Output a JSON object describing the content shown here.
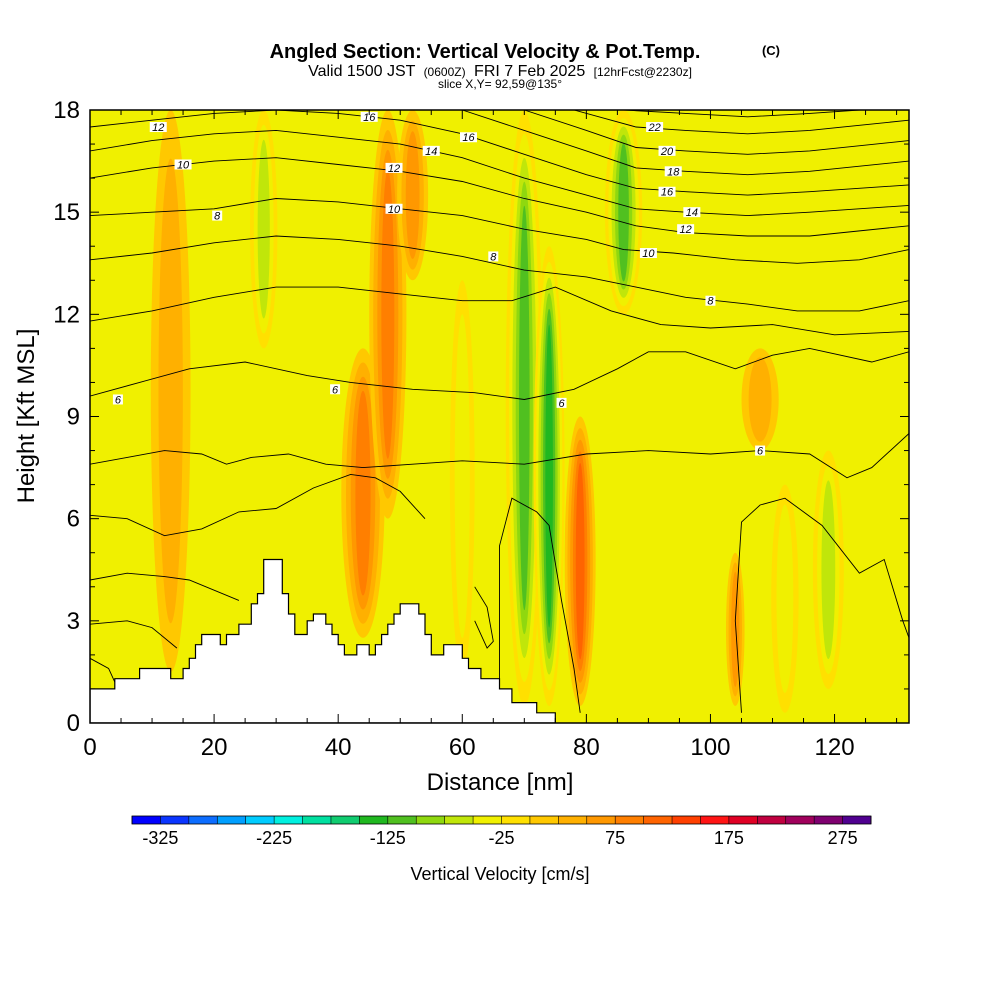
{
  "header": {
    "title": "Angled Section: Vertical Velocity & Pot.Temp.",
    "title_unit": "(C)",
    "valid_prefix": "Valid 1500 JST",
    "valid_utc": "(0600Z)",
    "valid_date": "FRI 7 Feb 2025",
    "forecast": "[12hrFcst@2230z]",
    "slice": "slice X,Y= 92,59@135°"
  },
  "chart_data": {
    "type": "heatmap",
    "xlabel": "Distance [nm]",
    "ylabel": "Height [Kft MSL]",
    "xlim": [
      0,
      132
    ],
    "ylim": [
      0,
      18
    ],
    "x_ticks": [
      {
        "v": 0,
        "label": "0"
      },
      {
        "v": 20,
        "label": "20"
      },
      {
        "v": 40,
        "label": "40"
      },
      {
        "v": 60,
        "label": "60"
      },
      {
        "v": 80,
        "label": "80"
      },
      {
        "v": 100,
        "label": "100"
      },
      {
        "v": 120,
        "label": "120"
      }
    ],
    "y_ticks": [
      {
        "v": 0,
        "label": "0"
      },
      {
        "v": 3,
        "label": "3"
      },
      {
        "v": 6,
        "label": "6"
      },
      {
        "v": 9,
        "label": "9"
      },
      {
        "v": 12,
        "label": "12"
      },
      {
        "v": 15,
        "label": "15"
      },
      {
        "v": 18,
        "label": "18"
      }
    ],
    "grid": false,
    "colorbar": {
      "label": "Vertical Velocity [cm/s]",
      "min": -350,
      "step": 25,
      "colors": [
        "#0000ff",
        "#0a35ff",
        "#0d6dff",
        "#009fff",
        "#00ccff",
        "#00f0e0",
        "#00e0a0",
        "#10cc70",
        "#20b820",
        "#50c020",
        "#8fd80f",
        "#c0e60a",
        "#f0f000",
        "#ffe000",
        "#ffc800",
        "#ffb000",
        "#ff9800",
        "#ff7f00",
        "#ff6400",
        "#ff4000",
        "#ff1414",
        "#e00024",
        "#c00040",
        "#a0005c",
        "#7f0070",
        "#500090"
      ],
      "tick_labels": [
        {
          "v": -325,
          "label": "-325"
        },
        {
          "v": -225,
          "label": "-225"
        },
        {
          "v": -125,
          "label": "-125"
        },
        {
          "v": -25,
          "label": "-25"
        },
        {
          "v": 75,
          "label": "75"
        },
        {
          "v": 175,
          "label": "175"
        },
        {
          "v": 275,
          "label": "275"
        }
      ]
    },
    "terrain": [
      [
        0,
        1
      ],
      [
        4,
        1
      ],
      [
        4,
        1.3
      ],
      [
        8,
        1.3
      ],
      [
        8,
        1.6
      ],
      [
        13,
        1.6
      ],
      [
        13,
        1.3
      ],
      [
        15,
        1.3
      ],
      [
        15,
        1.6
      ],
      [
        16,
        1.6
      ],
      [
        16,
        1.9
      ],
      [
        17,
        1.9
      ],
      [
        17,
        2.3
      ],
      [
        18,
        2.3
      ],
      [
        18,
        2.6
      ],
      [
        21,
        2.6
      ],
      [
        21,
        2.3
      ],
      [
        22,
        2.3
      ],
      [
        22,
        2.6
      ],
      [
        24,
        2.6
      ],
      [
        24,
        2.9
      ],
      [
        26,
        2.9
      ],
      [
        26,
        3.5
      ],
      [
        27,
        3.5
      ],
      [
        27,
        3.8
      ],
      [
        28,
        3.8
      ],
      [
        28,
        4.8
      ],
      [
        31,
        4.8
      ],
      [
        31,
        3.8
      ],
      [
        32,
        3.8
      ],
      [
        32,
        3.2
      ],
      [
        33,
        3.2
      ],
      [
        33,
        2.6
      ],
      [
        35,
        2.6
      ],
      [
        35,
        3.0
      ],
      [
        36,
        3.0
      ],
      [
        36,
        3.2
      ],
      [
        38,
        3.2
      ],
      [
        38,
        2.9
      ],
      [
        39,
        2.9
      ],
      [
        39,
        2.6
      ],
      [
        40,
        2.6
      ],
      [
        40,
        2.3
      ],
      [
        41,
        2.3
      ],
      [
        41,
        2.0
      ],
      [
        43,
        2.0
      ],
      [
        43,
        2.3
      ],
      [
        45,
        2.3
      ],
      [
        45,
        2.0
      ],
      [
        46,
        2.0
      ],
      [
        46,
        2.3
      ],
      [
        47,
        2.3
      ],
      [
        47,
        2.6
      ],
      [
        48,
        2.6
      ],
      [
        48,
        2.9
      ],
      [
        49,
        2.9
      ],
      [
        49,
        3.2
      ],
      [
        50,
        3.2
      ],
      [
        50,
        3.5
      ],
      [
        53,
        3.5
      ],
      [
        53,
        3.2
      ],
      [
        54,
        3.2
      ],
      [
        54,
        2.6
      ],
      [
        55,
        2.6
      ],
      [
        55,
        2.0
      ],
      [
        57,
        2.0
      ],
      [
        57,
        2.3
      ],
      [
        60,
        2.3
      ],
      [
        60,
        1.9
      ],
      [
        61,
        1.9
      ],
      [
        61,
        1.6
      ],
      [
        63,
        1.6
      ],
      [
        63,
        1.3
      ],
      [
        66,
        1.3
      ],
      [
        66,
        1.0
      ],
      [
        68,
        1.0
      ],
      [
        68,
        0.6
      ],
      [
        72,
        0.6
      ],
      [
        72,
        0.3
      ],
      [
        75,
        0.3
      ],
      [
        75,
        0
      ],
      [
        0,
        0
      ]
    ],
    "updrafts": [
      {
        "cx": 13,
        "y0": 1.5,
        "y1": 18,
        "w": 3.2,
        "v": 45
      },
      {
        "cx": 28,
        "y0": 11,
        "y1": 18,
        "w": 2.2,
        "v": -60
      },
      {
        "cx": 44,
        "y0": 2.5,
        "y1": 11,
        "w": 3.5,
        "v": 80
      },
      {
        "cx": 48,
        "y0": 6,
        "y1": 18,
        "w": 3.0,
        "v": 95
      },
      {
        "cx": 52,
        "y0": 13,
        "y1": 18,
        "w": 2.5,
        "v": 70
      },
      {
        "cx": 60,
        "y0": 1.5,
        "y1": 13,
        "w": 2.0,
        "v": -40
      },
      {
        "cx": 70,
        "y0": 0.5,
        "y1": 18,
        "w": 3.0,
        "v": -110
      },
      {
        "cx": 74,
        "y0": 0.5,
        "y1": 14,
        "w": 2.5,
        "v": -150
      },
      {
        "cx": 79,
        "y0": 0.5,
        "y1": 9,
        "w": 2.5,
        "v": 120
      },
      {
        "cx": 86,
        "y0": 12,
        "y1": 18,
        "w": 3.0,
        "v": -120
      },
      {
        "cx": 104,
        "y0": 0.5,
        "y1": 5,
        "w": 1.5,
        "v": 70
      },
      {
        "cx": 108,
        "y0": 8,
        "y1": 11,
        "w": 3.0,
        "v": 40
      },
      {
        "cx": 112,
        "y0": 0.3,
        "y1": 7,
        "w": 2.2,
        "v": -50
      },
      {
        "cx": 119,
        "y0": 1,
        "y1": 8,
        "w": 2.5,
        "v": -60
      }
    ],
    "theta_labels": [
      {
        "x": 4.5,
        "y": 9.5,
        "label": "6"
      },
      {
        "x": 39.5,
        "y": 9.8,
        "label": "6"
      },
      {
        "x": 76,
        "y": 9.4,
        "label": "6"
      },
      {
        "x": 108,
        "y": 8.0,
        "label": "6"
      },
      {
        "x": 20.5,
        "y": 14.9,
        "label": "8"
      },
      {
        "x": 65,
        "y": 13.7,
        "label": "8"
      },
      {
        "x": 100,
        "y": 12.4,
        "label": "8"
      },
      {
        "x": 15,
        "y": 16.4,
        "label": "10"
      },
      {
        "x": 49,
        "y": 15.1,
        "label": "10"
      },
      {
        "x": 90,
        "y": 13.8,
        "label": "10"
      },
      {
        "x": 11,
        "y": 17.5,
        "label": "12"
      },
      {
        "x": 49,
        "y": 16.3,
        "label": "12"
      },
      {
        "x": 96,
        "y": 14.5,
        "label": "12"
      },
      {
        "x": 55,
        "y": 16.8,
        "label": "14"
      },
      {
        "x": 97,
        "y": 15.0,
        "label": "14"
      },
      {
        "x": 45,
        "y": 17.8,
        "label": "16"
      },
      {
        "x": 61,
        "y": 17.2,
        "label": "16"
      },
      {
        "x": 93,
        "y": 15.6,
        "label": "16"
      },
      {
        "x": 94,
        "y": 16.2,
        "label": "18"
      },
      {
        "x": 93,
        "y": 16.8,
        "label": "20"
      },
      {
        "x": 91,
        "y": 17.5,
        "label": "22"
      }
    ],
    "theta_lines": [
      [
        [
          0,
          9.6
        ],
        [
          8,
          10.0
        ],
        [
          16,
          10.4
        ],
        [
          25,
          10.6
        ],
        [
          35,
          10.2
        ],
        [
          42,
          10.0
        ],
        [
          52,
          9.8
        ],
        [
          62,
          9.7
        ],
        [
          70,
          9.5
        ],
        [
          78,
          9.8
        ],
        [
          85,
          10.4
        ],
        [
          90,
          10.9
        ],
        [
          96,
          10.9
        ],
        [
          104,
          10.4
        ],
        [
          110,
          10.8
        ],
        [
          116,
          11.0
        ],
        [
          126,
          10.6
        ],
        [
          132,
          10.9
        ]
      ],
      [
        [
          0,
          11.8
        ],
        [
          10,
          12.1
        ],
        [
          20,
          12.5
        ],
        [
          30,
          12.8
        ],
        [
          40,
          12.8
        ],
        [
          50,
          12.6
        ],
        [
          60,
          12.4
        ],
        [
          68,
          12.4
        ],
        [
          75,
          12.8
        ],
        [
          84,
          12.1
        ],
        [
          92,
          11.7
        ],
        [
          100,
          11.6
        ],
        [
          110,
          11.7
        ],
        [
          120,
          11.4
        ],
        [
          132,
          11.5
        ]
      ],
      [
        [
          0,
          13.6
        ],
        [
          10,
          13.8
        ],
        [
          20,
          14.1
        ],
        [
          30,
          14.3
        ],
        [
          40,
          14.2
        ],
        [
          50,
          14.0
        ],
        [
          60,
          13.7
        ],
        [
          70,
          13.3
        ],
        [
          80,
          13.1
        ],
        [
          88,
          12.8
        ],
        [
          96,
          12.5
        ],
        [
          106,
          12.3
        ],
        [
          114,
          12.1
        ],
        [
          124,
          12.1
        ],
        [
          132,
          12.4
        ]
      ],
      [
        [
          0,
          14.9
        ],
        [
          10,
          15.0
        ],
        [
          20,
          15.1
        ],
        [
          30,
          15.4
        ],
        [
          40,
          15.3
        ],
        [
          50,
          15.1
        ],
        [
          60,
          14.9
        ],
        [
          70,
          14.5
        ],
        [
          80,
          14.2
        ],
        [
          86,
          13.9
        ],
        [
          94,
          13.8
        ],
        [
          104,
          13.6
        ],
        [
          114,
          13.5
        ],
        [
          124,
          13.6
        ],
        [
          132,
          13.9
        ]
      ],
      [
        [
          0,
          16.0
        ],
        [
          10,
          16.3
        ],
        [
          20,
          16.5
        ],
        [
          30,
          16.6
        ],
        [
          40,
          16.4
        ],
        [
          50,
          16.2
        ],
        [
          60,
          15.9
        ],
        [
          70,
          15.4
        ],
        [
          80,
          15.0
        ],
        [
          88,
          14.6
        ],
        [
          96,
          14.4
        ],
        [
          106,
          14.3
        ],
        [
          116,
          14.3
        ],
        [
          132,
          14.6
        ]
      ],
      [
        [
          0,
          16.8
        ],
        [
          10,
          17.1
        ],
        [
          20,
          17.3
        ],
        [
          30,
          17.4
        ],
        [
          40,
          17.2
        ],
        [
          50,
          17.0
        ],
        [
          60,
          16.6
        ],
        [
          70,
          16.0
        ],
        [
          80,
          15.5
        ],
        [
          88,
          15.1
        ],
        [
          96,
          15.0
        ],
        [
          106,
          14.9
        ],
        [
          116,
          15.0
        ],
        [
          132,
          15.2
        ]
      ],
      [
        [
          0,
          17.5
        ],
        [
          10,
          17.7
        ],
        [
          20,
          17.9
        ],
        [
          30,
          18.0
        ],
        [
          40,
          17.9
        ],
        [
          50,
          17.7
        ],
        [
          60,
          17.3
        ],
        [
          70,
          16.7
        ],
        [
          80,
          16.1
        ],
        [
          88,
          15.7
        ],
        [
          96,
          15.6
        ],
        [
          106,
          15.5
        ],
        [
          116,
          15.6
        ],
        [
          132,
          15.8
        ]
      ],
      [
        [
          60,
          18.0
        ],
        [
          70,
          17.4
        ],
        [
          80,
          16.8
        ],
        [
          88,
          16.3
        ],
        [
          96,
          16.2
        ],
        [
          106,
          16.1
        ],
        [
          116,
          16.2
        ],
        [
          132,
          16.5
        ]
      ],
      [
        [
          70,
          18.0
        ],
        [
          80,
          17.4
        ],
        [
          88,
          16.9
        ],
        [
          96,
          16.8
        ],
        [
          106,
          16.7
        ],
        [
          116,
          16.8
        ],
        [
          132,
          17.1
        ]
      ],
      [
        [
          78,
          18.0
        ],
        [
          88,
          17.5
        ],
        [
          96,
          17.4
        ],
        [
          106,
          17.3
        ],
        [
          116,
          17.4
        ],
        [
          132,
          17.7
        ]
      ],
      [
        [
          86,
          18.0
        ],
        [
          96,
          17.9
        ],
        [
          106,
          17.8
        ],
        [
          116,
          17.9
        ],
        [
          124,
          18.0
        ]
      ],
      [
        [
          0,
          7.6
        ],
        [
          6,
          7.8
        ],
        [
          12,
          8.0
        ],
        [
          18,
          7.9
        ],
        [
          22,
          7.6
        ],
        [
          26,
          7.8
        ],
        [
          32,
          7.9
        ],
        [
          38,
          7.6
        ],
        [
          44,
          7.5
        ],
        [
          52,
          7.6
        ],
        [
          60,
          7.7
        ],
        [
          70,
          7.6
        ],
        [
          80,
          7.9
        ],
        [
          90,
          8.0
        ],
        [
          100,
          7.9
        ],
        [
          108,
          8.0
        ],
        [
          116,
          7.9
        ],
        [
          122,
          7.2
        ],
        [
          126,
          7.5
        ],
        [
          132,
          8.5
        ]
      ],
      [
        [
          0,
          6.1
        ],
        [
          6,
          6.0
        ],
        [
          12,
          5.5
        ],
        [
          18,
          5.7
        ],
        [
          24,
          6.2
        ],
        [
          30,
          6.3
        ],
        [
          36,
          6.9
        ],
        [
          42,
          7.3
        ],
        [
          46,
          7.2
        ],
        [
          50,
          6.8
        ],
        [
          54,
          6.0
        ]
      ],
      [
        [
          0,
          4.2
        ],
        [
          6,
          4.4
        ],
        [
          12,
          4.3
        ],
        [
          16,
          4.2
        ],
        [
          20,
          3.9
        ],
        [
          24,
          3.6
        ]
      ],
      [
        [
          0,
          2.9
        ],
        [
          6,
          3.0
        ],
        [
          10,
          2.8
        ],
        [
          14,
          2.2
        ]
      ],
      [
        [
          0,
          1.9
        ],
        [
          3,
          1.6
        ],
        [
          4,
          1.2
        ]
      ],
      [
        [
          66,
          1.0
        ],
        [
          66,
          5.2
        ],
        [
          68,
          6.6
        ],
        [
          72,
          6.2
        ],
        [
          74,
          5.8
        ],
        [
          76,
          3.6
        ],
        [
          78,
          1.6
        ],
        [
          79,
          0.3
        ]
      ],
      [
        [
          105,
          0.3
        ],
        [
          104,
          3.0
        ],
        [
          105,
          5.9
        ],
        [
          108,
          6.4
        ],
        [
          112,
          6.6
        ],
        [
          118,
          5.8
        ],
        [
          124,
          4.4
        ],
        [
          128,
          4.8
        ],
        [
          131,
          3.0
        ],
        [
          132,
          2.5
        ]
      ],
      [
        [
          62,
          4.0
        ],
        [
          64,
          3.4
        ],
        [
          65,
          2.4
        ],
        [
          64,
          2.2
        ],
        [
          62,
          3.0
        ]
      ]
    ]
  }
}
